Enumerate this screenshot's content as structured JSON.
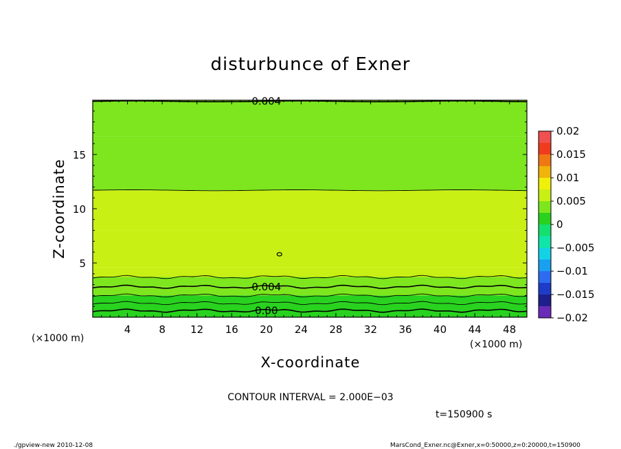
{
  "chart_data": {
    "type": "heatmap",
    "title": "disturbunce of Exner",
    "xlabel": "X-coordinate",
    "ylabel": "Z-coordinate",
    "x_unit": "(×1000 m)",
    "y_unit": "(×1000 m)",
    "xlim": [
      0,
      50
    ],
    "ylim": [
      0,
      20
    ],
    "x_ticks": [
      4,
      8,
      12,
      16,
      20,
      24,
      28,
      32,
      36,
      40,
      44,
      48
    ],
    "y_ticks": [
      5,
      10,
      15
    ],
    "grid": false,
    "colorbar": {
      "levels": [
        -0.02,
        -0.0175,
        -0.015,
        -0.0125,
        -0.01,
        -0.0075,
        -0.005,
        -0.0025,
        0,
        0.0025,
        0.005,
        0.0075,
        0.01,
        0.0125,
        0.015,
        0.0175,
        0.02
      ],
      "colors": [
        "#6a2cb8",
        "#1e1e8c",
        "#1e3cc8",
        "#2d6cf0",
        "#1aa0f0",
        "#13d2e6",
        "#10e6a8",
        "#14e070",
        "#28d21e",
        "#7de61e",
        "#c8f014",
        "#f0f00a",
        "#f0b40a",
        "#f07814",
        "#f03c1e",
        "#f05050",
        "#f08c8c"
      ],
      "tick_values": [
        0.02,
        0.015,
        0.01,
        0.005,
        0,
        -0.005,
        -0.01,
        -0.015,
        -0.02
      ],
      "tick_labels": [
        "0.02",
        "0.015",
        "0.01",
        "0.005",
        "0",
        "−0.005",
        "−0.01",
        "−0.015",
        "−0.02"
      ]
    },
    "bands": [
      {
        "z0": 0.0,
        "z1": 0.6,
        "value": 0.0005
      },
      {
        "z0": 0.6,
        "z1": 1.3,
        "value": 0.0012
      },
      {
        "z0": 1.3,
        "z1": 2.0,
        "value": 0.0022
      },
      {
        "z0": 2.0,
        "z1": 2.8,
        "value": 0.0032
      },
      {
        "z0": 2.8,
        "z1": 3.7,
        "value": 0.0045
      },
      {
        "z0": 3.7,
        "z1": 4.6,
        "value": 0.0058
      },
      {
        "z0": 4.6,
        "z1": 8.0,
        "value": 0.0068
      },
      {
        "z0": 8.0,
        "z1": 11.7,
        "value": 0.0058
      },
      {
        "z0": 11.7,
        "z1": 16.7,
        "value": 0.0048
      },
      {
        "z0": 16.7,
        "z1": 20.0,
        "value": 0.0041
      }
    ],
    "contours": [
      {
        "z": 0.6,
        "label": "0.00",
        "label_x": 20,
        "wavy": true
      },
      {
        "z": 1.3,
        "wavy": true
      },
      {
        "z": 2.0,
        "wavy": true
      },
      {
        "z": 2.8,
        "label": "0.004",
        "label_x": 20,
        "wavy": true
      },
      {
        "z": 3.7,
        "wavy": true
      },
      {
        "z": 11.7,
        "wavy": false
      },
      {
        "z": 19.9,
        "label": "0.004",
        "label_x": 20,
        "wavy": false
      }
    ],
    "annotations": {
      "contour_interval": "CONTOUR INTERVAL = 2.000E−03",
      "time": "t=150900  s",
      "footer_left": "./gpview-new   2010-12-08",
      "footer_right": "MarsCond_Exner.nc@Exner,x=0:50000,z=0:20000,t=150900"
    }
  }
}
